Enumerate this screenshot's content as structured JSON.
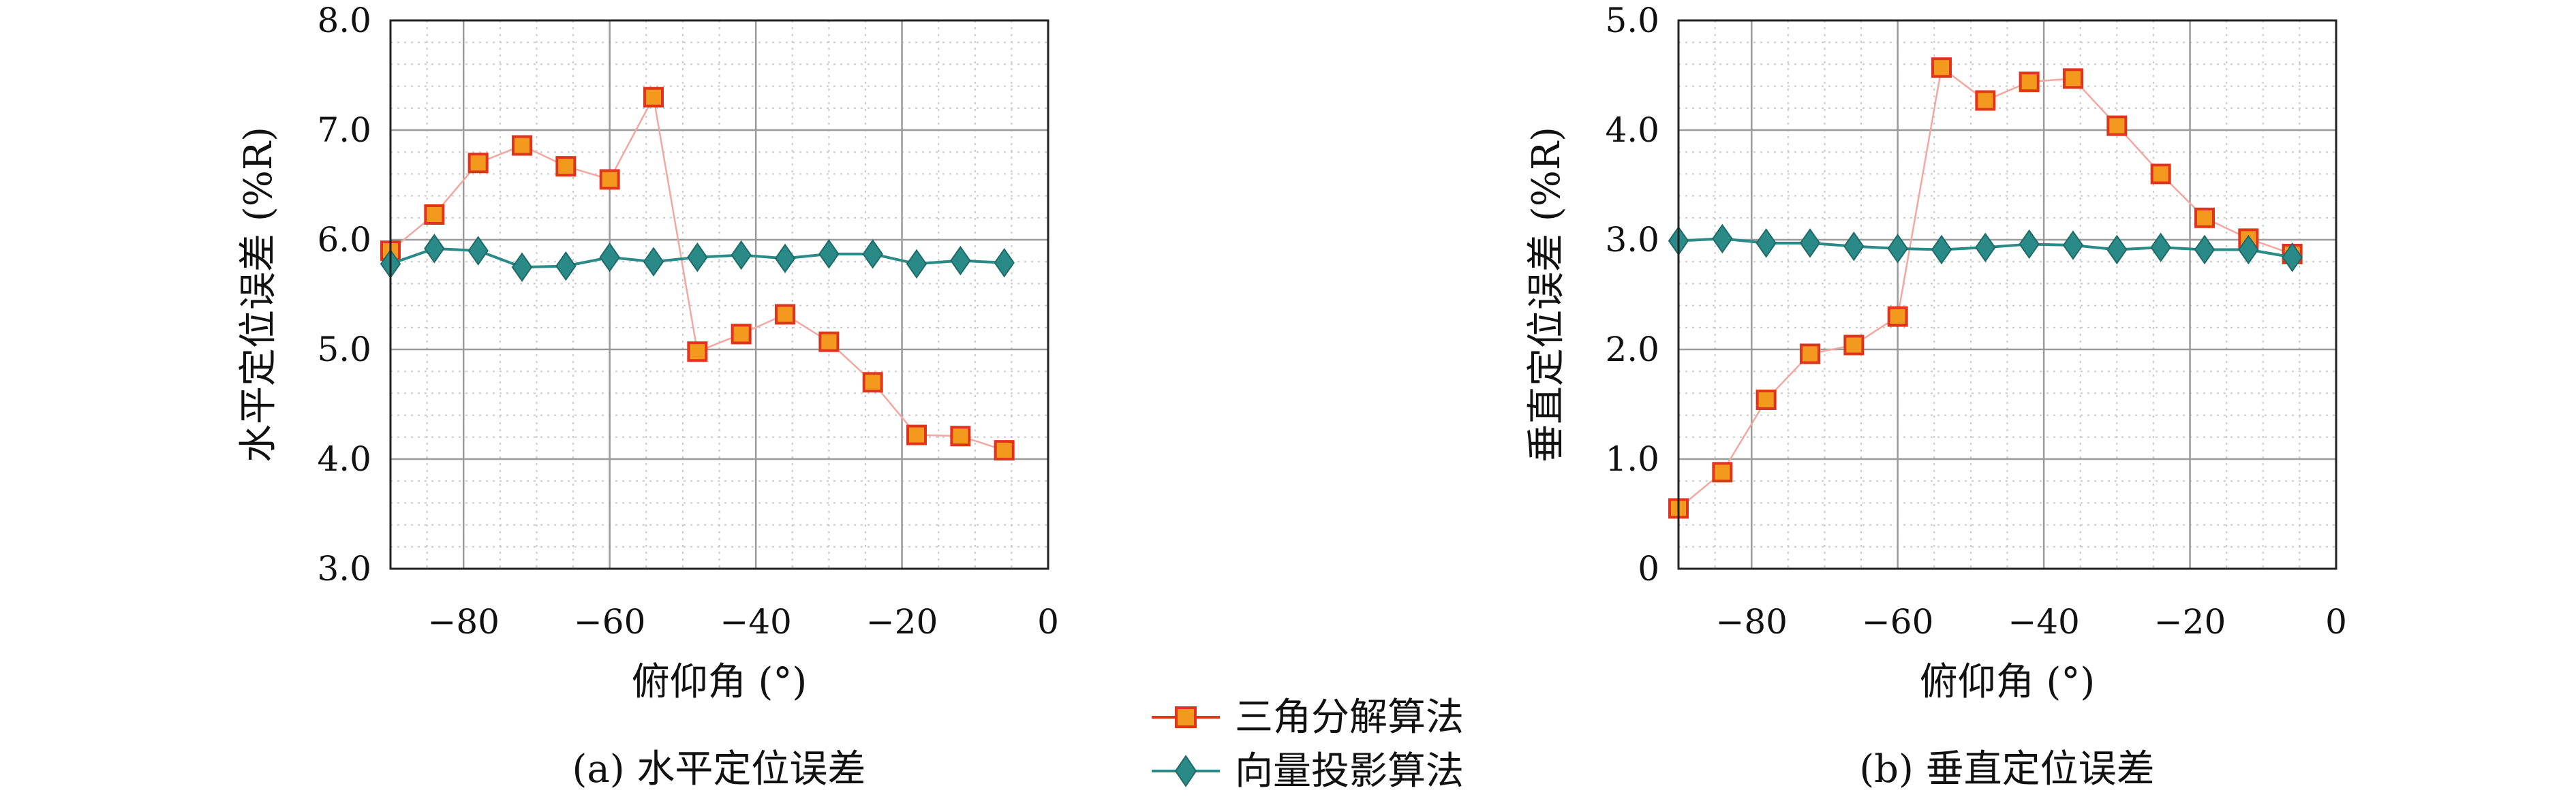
{
  "legend": {
    "series_a": "三角分解算法",
    "series_b": "向量投影算法"
  },
  "chart_data": [
    {
      "type": "line",
      "caption": "(a) 水平定位误差",
      "xlabel": "俯仰角 (°)",
      "ylabel": "水平定位误差 (%R)",
      "xlim": [
        -90,
        0
      ],
      "ylim": [
        3.0,
        8.0
      ],
      "xticks": [
        -80,
        -60,
        -40,
        -20,
        0
      ],
      "xtick_labels": [
        "−80",
        "−60",
        "−40",
        "−20",
        "0"
      ],
      "yticks": [
        3.0,
        4.0,
        5.0,
        6.0,
        7.0,
        8.0
      ],
      "ytick_labels": [
        "3.0",
        "4.0",
        "5.0",
        "6.0",
        "7.0",
        "8.0"
      ],
      "grid": true,
      "x": [
        -90,
        -84,
        -78,
        -72,
        -66,
        -60,
        -54,
        -48,
        -42,
        -36,
        -30,
        -24,
        -18,
        -12,
        -6
      ],
      "series": [
        {
          "name": "三角分解算法",
          "color": "#e0341c",
          "line_color": "#f2a7a0",
          "marker": "square",
          "values": [
            5.9,
            6.23,
            6.7,
            6.86,
            6.67,
            6.55,
            7.3,
            4.98,
            5.14,
            5.32,
            5.07,
            4.7,
            4.22,
            4.21,
            4.08
          ]
        },
        {
          "name": "向量投影算法",
          "color": "#2a8a87",
          "line_color": "#2a8a87",
          "marker": "diamond",
          "values": [
            5.78,
            5.92,
            5.9,
            5.75,
            5.76,
            5.84,
            5.8,
            5.84,
            5.86,
            5.83,
            5.87,
            5.87,
            5.78,
            5.81,
            5.79
          ]
        }
      ]
    },
    {
      "type": "line",
      "caption": "(b) 垂直定位误差",
      "xlabel": "俯仰角 (°)",
      "ylabel": "垂直定位误差 (%R)",
      "xlim": [
        -90,
        0
      ],
      "ylim": [
        0,
        5.0
      ],
      "xticks": [
        -80,
        -60,
        -40,
        -20,
        0
      ],
      "xtick_labels": [
        "−80",
        "−60",
        "−40",
        "−20",
        "0"
      ],
      "yticks": [
        0,
        1.0,
        2.0,
        3.0,
        4.0,
        5.0
      ],
      "ytick_labels": [
        "0",
        "1.0",
        "2.0",
        "3.0",
        "4.0",
        "5.0"
      ],
      "grid": true,
      "x": [
        -90,
        -84,
        -78,
        -72,
        -66,
        -60,
        -54,
        -48,
        -42,
        -36,
        -30,
        -24,
        -18,
        -12,
        -6
      ],
      "series": [
        {
          "name": "三角分解算法",
          "color": "#e0341c",
          "line_color": "#f2a7a0",
          "marker": "square",
          "values": [
            0.55,
            0.88,
            1.54,
            1.96,
            2.04,
            2.3,
            4.57,
            4.27,
            4.44,
            4.47,
            4.04,
            3.6,
            3.2,
            3.01,
            2.87
          ]
        },
        {
          "name": "向量投影算法",
          "color": "#2a8a87",
          "line_color": "#2a8a87",
          "marker": "diamond",
          "values": [
            2.99,
            3.01,
            2.97,
            2.97,
            2.94,
            2.92,
            2.91,
            2.93,
            2.96,
            2.95,
            2.91,
            2.93,
            2.91,
            2.91,
            2.84
          ]
        }
      ]
    }
  ]
}
